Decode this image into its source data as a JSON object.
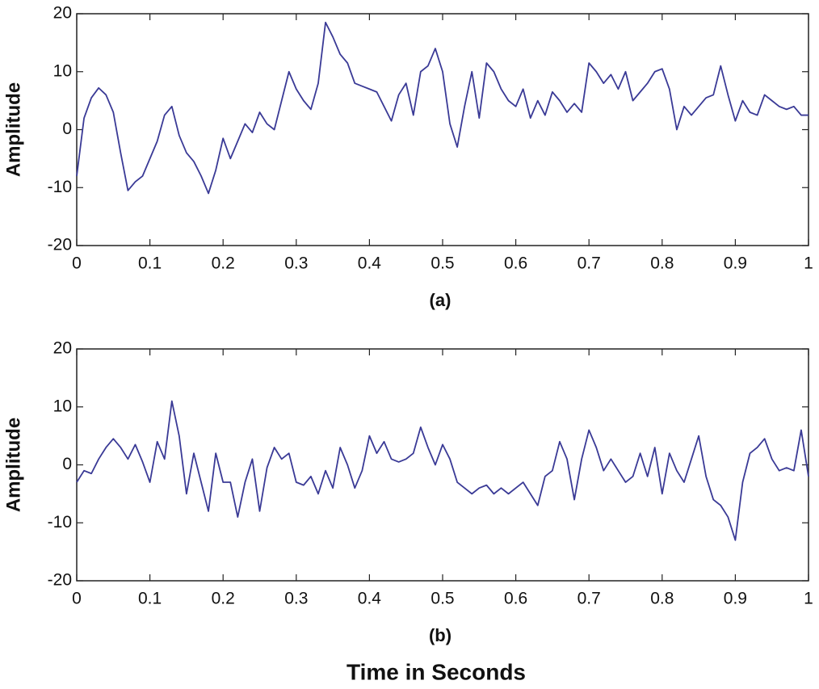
{
  "chart_data": [
    {
      "type": "line",
      "ylabel": "Amplitude",
      "caption": "(a)",
      "color": "#3a3a96",
      "xlim": [
        0,
        1
      ],
      "ylim": [
        -20,
        20
      ],
      "xticks": [
        0,
        0.1,
        0.2,
        0.3,
        0.4,
        0.5,
        0.6,
        0.7,
        0.8,
        0.9,
        1
      ],
      "yticks": [
        -20,
        -10,
        0,
        10,
        20
      ],
      "x": [
        0,
        0.01,
        0.02,
        0.03,
        0.04,
        0.05,
        0.06,
        0.07,
        0.08,
        0.09,
        0.1,
        0.11,
        0.12,
        0.13,
        0.14,
        0.15,
        0.16,
        0.17,
        0.18,
        0.19,
        0.2,
        0.21,
        0.22,
        0.23,
        0.24,
        0.25,
        0.26,
        0.27,
        0.28,
        0.29,
        0.3,
        0.31,
        0.32,
        0.33,
        0.34,
        0.35,
        0.36,
        0.37,
        0.38,
        0.39,
        0.4,
        0.41,
        0.42,
        0.43,
        0.44,
        0.45,
        0.46,
        0.47,
        0.48,
        0.49,
        0.5,
        0.51,
        0.52,
        0.53,
        0.54,
        0.55,
        0.56,
        0.57,
        0.58,
        0.59,
        0.6,
        0.61,
        0.62,
        0.63,
        0.64,
        0.65,
        0.66,
        0.67,
        0.68,
        0.69,
        0.7,
        0.71,
        0.72,
        0.73,
        0.74,
        0.75,
        0.76,
        0.77,
        0.78,
        0.79,
        0.8,
        0.81,
        0.82,
        0.83,
        0.84,
        0.85,
        0.86,
        0.87,
        0.88,
        0.89,
        0.9,
        0.91,
        0.92,
        0.93,
        0.94,
        0.95,
        0.96,
        0.97,
        0.98,
        0.99,
        1
      ],
      "values": [
        -8,
        2,
        5.5,
        7.2,
        6,
        3,
        -4,
        -10.5,
        -9,
        -8,
        -5,
        -2,
        2.5,
        4,
        -1,
        -4,
        -5.5,
        -8,
        -11,
        -7,
        -1.5,
        -5,
        -2,
        1,
        -0.5,
        3,
        1,
        0,
        5,
        10,
        7,
        5,
        3.5,
        8,
        18.5,
        16,
        13,
        11.5,
        8,
        7.5,
        7,
        6.5,
        4,
        1.5,
        6,
        8,
        2.5,
        10,
        11,
        14,
        10,
        1,
        -3,
        4,
        10,
        2,
        11.5,
        10,
        7,
        5,
        4,
        7,
        2,
        5,
        2.5,
        6.5,
        5,
        3,
        4.5,
        3,
        11.5,
        10,
        8,
        9.5,
        7,
        10,
        5,
        6.5,
        8,
        10,
        10.5,
        7,
        0,
        4,
        2.5,
        4,
        5.5,
        6,
        11,
        6,
        1.5,
        5,
        3,
        2.5,
        6,
        5,
        4,
        3.5,
        4,
        2.5,
        2.5
      ]
    },
    {
      "type": "line",
      "ylabel": "Amplitude",
      "caption": "(b)",
      "xlabel": "Time in Seconds",
      "color": "#3a3a96",
      "xlim": [
        0,
        1
      ],
      "ylim": [
        -20,
        20
      ],
      "xticks": [
        0,
        0.1,
        0.2,
        0.3,
        0.4,
        0.5,
        0.6,
        0.7,
        0.8,
        0.9,
        1
      ],
      "yticks": [
        -20,
        -10,
        0,
        10,
        20
      ],
      "x": [
        0,
        0.01,
        0.02,
        0.03,
        0.04,
        0.05,
        0.06,
        0.07,
        0.08,
        0.09,
        0.1,
        0.11,
        0.12,
        0.13,
        0.14,
        0.15,
        0.16,
        0.17,
        0.18,
        0.19,
        0.2,
        0.21,
        0.22,
        0.23,
        0.24,
        0.25,
        0.26,
        0.27,
        0.28,
        0.29,
        0.3,
        0.31,
        0.32,
        0.33,
        0.34,
        0.35,
        0.36,
        0.37,
        0.38,
        0.39,
        0.4,
        0.41,
        0.42,
        0.43,
        0.44,
        0.45,
        0.46,
        0.47,
        0.48,
        0.49,
        0.5,
        0.51,
        0.52,
        0.53,
        0.54,
        0.55,
        0.56,
        0.57,
        0.58,
        0.59,
        0.6,
        0.61,
        0.62,
        0.63,
        0.64,
        0.65,
        0.66,
        0.67,
        0.68,
        0.69,
        0.7,
        0.71,
        0.72,
        0.73,
        0.74,
        0.75,
        0.76,
        0.77,
        0.78,
        0.79,
        0.8,
        0.81,
        0.82,
        0.83,
        0.84,
        0.85,
        0.86,
        0.87,
        0.88,
        0.89,
        0.9,
        0.91,
        0.92,
        0.93,
        0.94,
        0.95,
        0.96,
        0.97,
        0.98,
        0.99,
        1
      ],
      "values": [
        -3,
        -1,
        -1.5,
        1,
        3,
        4.5,
        3,
        1,
        3.5,
        0.5,
        -3,
        4,
        1,
        11,
        5,
        -5,
        2,
        -3,
        -8,
        2,
        -3,
        -3,
        -9,
        -3,
        1,
        -8,
        -0.5,
        3,
        1,
        2,
        -3,
        -3.5,
        -2,
        -5,
        -1,
        -4,
        3,
        0,
        -4,
        -1,
        5,
        2,
        4,
        1,
        0.5,
        1,
        2,
        6.5,
        3,
        0,
        3.5,
        1,
        -3,
        -4,
        -5,
        -4,
        -3.5,
        -5,
        -4,
        -5,
        -4,
        -3,
        -5,
        -7,
        -2,
        -1,
        4,
        1,
        -6,
        1,
        6,
        3,
        -1,
        1,
        -1,
        -3,
        -2,
        2,
        -2,
        3,
        -5,
        2,
        -1,
        -3,
        1,
        5,
        -2,
        -6,
        -7,
        -9,
        -13,
        -3,
        2,
        3,
        4.5,
        1,
        -1,
        -0.5,
        -1,
        6,
        -2
      ]
    }
  ]
}
